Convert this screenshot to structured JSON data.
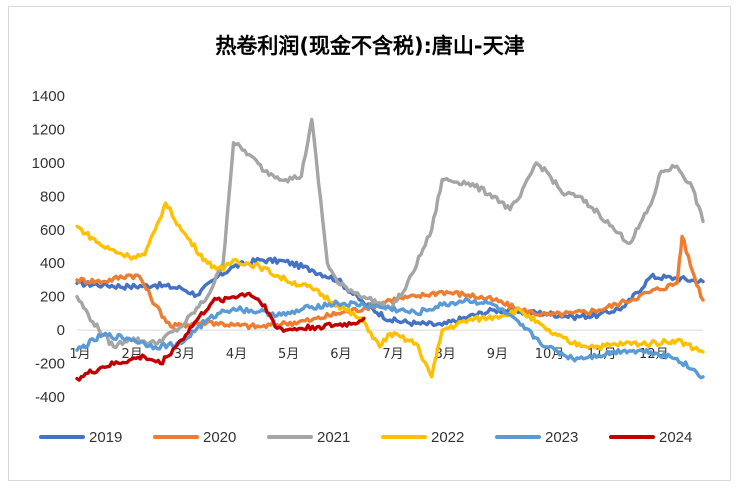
{
  "chart_data": {
    "type": "line",
    "title": "热卷利润(现金不含税):唐山-天津",
    "xlabel": "",
    "ylabel": "",
    "ylim": [
      -400,
      1400
    ],
    "yticks": [
      -400,
      -200,
      0,
      200,
      400,
      600,
      800,
      1000,
      1200,
      1400
    ],
    "xlim": [
      1,
      13
    ],
    "xticks": [
      {
        "x": 1,
        "label": "1月"
      },
      {
        "x": 2,
        "label": "2月"
      },
      {
        "x": 3,
        "label": "3月"
      },
      {
        "x": 4,
        "label": "4月"
      },
      {
        "x": 5,
        "label": "5月"
      },
      {
        "x": 6,
        "label": "6月"
      },
      {
        "x": 7,
        "label": "7月"
      },
      {
        "x": 8,
        "label": "8月"
      },
      {
        "x": 9,
        "label": "9月"
      },
      {
        "x": 10,
        "label": "10月"
      },
      {
        "x": 11,
        "label": "11月"
      },
      {
        "x": 12,
        "label": "12月"
      }
    ],
    "grid": false,
    "legend_position": "bottom",
    "series": [
      {
        "name": "2019",
        "color": "#4472C4",
        "points": [
          [
            1.0,
            280
          ],
          [
            1.5,
            270
          ],
          [
            2.0,
            260
          ],
          [
            2.5,
            270
          ],
          [
            3.0,
            250
          ],
          [
            3.3,
            210
          ],
          [
            3.7,
            320
          ],
          [
            4.0,
            380
          ],
          [
            4.5,
            420
          ],
          [
            5.0,
            410
          ],
          [
            5.5,
            360
          ],
          [
            6.0,
            300
          ],
          [
            6.5,
            160
          ],
          [
            7.0,
            60
          ],
          [
            7.5,
            40
          ],
          [
            8.0,
            30
          ],
          [
            8.5,
            80
          ],
          [
            9.0,
            120
          ],
          [
            9.5,
            110
          ],
          [
            10.0,
            100
          ],
          [
            10.5,
            80
          ],
          [
            11.0,
            90
          ],
          [
            11.5,
            140
          ],
          [
            12.0,
            320
          ],
          [
            12.5,
            310
          ],
          [
            13.0,
            290
          ]
        ]
      },
      {
        "name": "2020",
        "color": "#ED7D31",
        "points": [
          [
            1.0,
            300
          ],
          [
            1.5,
            290
          ],
          [
            2.0,
            330
          ],
          [
            2.2,
            320
          ],
          [
            2.5,
            150
          ],
          [
            2.8,
            20
          ],
          [
            3.0,
            30
          ],
          [
            3.5,
            50
          ],
          [
            4.0,
            30
          ],
          [
            4.5,
            20
          ],
          [
            5.0,
            40
          ],
          [
            5.5,
            60
          ],
          [
            6.0,
            100
          ],
          [
            6.5,
            130
          ],
          [
            7.0,
            180
          ],
          [
            7.5,
            200
          ],
          [
            8.0,
            230
          ],
          [
            8.5,
            210
          ],
          [
            9.0,
            180
          ],
          [
            9.5,
            120
          ],
          [
            10.0,
            90
          ],
          [
            10.5,
            100
          ],
          [
            11.0,
            120
          ],
          [
            11.5,
            170
          ],
          [
            12.0,
            230
          ],
          [
            12.5,
            280
          ],
          [
            12.6,
            560
          ],
          [
            12.8,
            350
          ],
          [
            13.0,
            180
          ]
        ]
      },
      {
        "name": "2021",
        "color": "#A5A5A5",
        "points": [
          [
            1.0,
            200
          ],
          [
            1.3,
            50
          ],
          [
            1.7,
            -100
          ],
          [
            2.0,
            -50
          ],
          [
            2.5,
            -80
          ],
          [
            3.0,
            20
          ],
          [
            3.5,
            200
          ],
          [
            3.8,
            400
          ],
          [
            4.0,
            1120
          ],
          [
            4.3,
            1050
          ],
          [
            4.6,
            950
          ],
          [
            5.0,
            900
          ],
          [
            5.3,
            920
          ],
          [
            5.5,
            1260
          ],
          [
            5.8,
            400
          ],
          [
            6.0,
            280
          ],
          [
            6.5,
            200
          ],
          [
            7.0,
            130
          ],
          [
            7.3,
            250
          ],
          [
            7.8,
            600
          ],
          [
            8.0,
            900
          ],
          [
            8.5,
            880
          ],
          [
            9.0,
            800
          ],
          [
            9.3,
            720
          ],
          [
            9.5,
            800
          ],
          [
            9.8,
            1000
          ],
          [
            10.0,
            950
          ],
          [
            10.3,
            820
          ],
          [
            10.6,
            800
          ],
          [
            11.0,
            700
          ],
          [
            11.3,
            600
          ],
          [
            11.6,
            520
          ],
          [
            12.0,
            750
          ],
          [
            12.2,
            950
          ],
          [
            12.5,
            980
          ],
          [
            12.8,
            850
          ],
          [
            13.0,
            650
          ]
        ]
      },
      {
        "name": "2022",
        "color": "#FFC000",
        "points": [
          [
            1.0,
            620
          ],
          [
            1.5,
            500
          ],
          [
            2.0,
            440
          ],
          [
            2.3,
            450
          ],
          [
            2.5,
            600
          ],
          [
            2.7,
            760
          ],
          [
            3.0,
            600
          ],
          [
            3.5,
            400
          ],
          [
            3.8,
            360
          ],
          [
            4.0,
            420
          ],
          [
            4.5,
            380
          ],
          [
            5.0,
            300
          ],
          [
            5.5,
            250
          ],
          [
            6.0,
            150
          ],
          [
            6.5,
            50
          ],
          [
            6.8,
            -100
          ],
          [
            7.0,
            -20
          ],
          [
            7.5,
            -80
          ],
          [
            7.8,
            -280
          ],
          [
            8.0,
            0
          ],
          [
            8.5,
            60
          ],
          [
            9.0,
            80
          ],
          [
            9.5,
            120
          ],
          [
            10.0,
            0
          ],
          [
            10.5,
            -80
          ],
          [
            11.0,
            -100
          ],
          [
            11.5,
            -80
          ],
          [
            12.0,
            -80
          ],
          [
            12.5,
            -60
          ],
          [
            13.0,
            -130
          ]
        ]
      },
      {
        "name": "2023",
        "color": "#5B9BD5",
        "points": [
          [
            1.0,
            -120
          ],
          [
            1.5,
            -30
          ],
          [
            2.0,
            -50
          ],
          [
            2.5,
            -100
          ],
          [
            3.0,
            -80
          ],
          [
            3.3,
            10
          ],
          [
            3.7,
            100
          ],
          [
            4.0,
            130
          ],
          [
            4.5,
            110
          ],
          [
            5.0,
            90
          ],
          [
            5.5,
            140
          ],
          [
            6.0,
            160
          ],
          [
            6.5,
            150
          ],
          [
            7.0,
            130
          ],
          [
            7.5,
            100
          ],
          [
            8.0,
            150
          ],
          [
            8.5,
            180
          ],
          [
            9.0,
            150
          ],
          [
            9.5,
            30
          ],
          [
            10.0,
            -100
          ],
          [
            10.5,
            -170
          ],
          [
            11.0,
            -150
          ],
          [
            11.5,
            -120
          ],
          [
            12.0,
            -130
          ],
          [
            12.5,
            -170
          ],
          [
            13.0,
            -280
          ]
        ]
      },
      {
        "name": "2024",
        "color": "#C00000",
        "points": [
          [
            1.0,
            -290
          ],
          [
            1.5,
            -220
          ],
          [
            2.0,
            -180
          ],
          [
            2.3,
            -160
          ],
          [
            2.6,
            -200
          ],
          [
            3.0,
            -60
          ],
          [
            3.3,
            60
          ],
          [
            3.6,
            170
          ],
          [
            4.0,
            200
          ],
          [
            4.3,
            220
          ],
          [
            4.6,
            150
          ],
          [
            4.8,
            20
          ],
          [
            5.0,
            0
          ],
          [
            5.3,
            10
          ],
          [
            5.6,
            20
          ],
          [
            6.0,
            30
          ],
          [
            6.3,
            40
          ],
          [
            6.5,
            70
          ]
        ]
      }
    ]
  }
}
